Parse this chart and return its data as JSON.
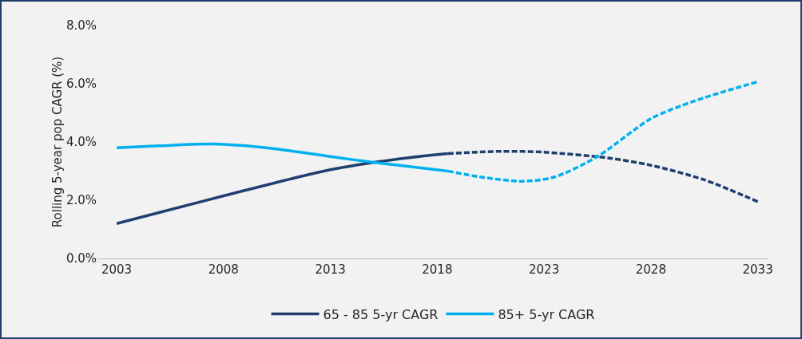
{
  "chart_data": {
    "type": "line",
    "ylabel": "Rolling 5-year pop CAGR (%)",
    "xlim": [
      2002.1,
      2033.5
    ],
    "ylim": [
      0,
      8
    ],
    "xticks": [
      2003,
      2008,
      2013,
      2018,
      2023,
      2028,
      2033
    ],
    "yticks": [
      {
        "value": 0,
        "label": "0.0%"
      },
      {
        "value": 2,
        "label": "2.0%"
      },
      {
        "value": 4,
        "label": "4.0%"
      },
      {
        "value": 6,
        "label": "6.0%"
      },
      {
        "value": 8,
        "label": "8.0%"
      }
    ],
    "legend": "bottom",
    "series": [
      {
        "name": "65 - 85 5-yr CAGR",
        "color": "#203f6e",
        "line_style": "solid",
        "x": [
          2003,
          2008,
          2013,
          2016,
          2018.5
        ],
        "values": [
          1.2,
          2.15,
          3.05,
          3.4,
          3.6
        ]
      },
      {
        "color": "#203f6e",
        "line_style": "dashed",
        "x": [
          2018.5,
          2021,
          2023,
          2026,
          2028,
          2030.5,
          2033
        ],
        "values": [
          3.6,
          3.68,
          3.65,
          3.45,
          3.2,
          2.7,
          1.95
        ]
      },
      {
        "name": "85+ 5-yr CAGR",
        "color": "#00b0f0",
        "line_style": "solid",
        "x": [
          2003,
          2005,
          2007.5,
          2010,
          2013,
          2015,
          2018.5
        ],
        "values": [
          3.8,
          3.87,
          3.93,
          3.8,
          3.5,
          3.3,
          3.0
        ]
      },
      {
        "color": "#00b0f0",
        "line_style": "dashed",
        "x": [
          2018.5,
          2020,
          2022,
          2023.5,
          2025.5,
          2028,
          2030,
          2033
        ],
        "values": [
          3.0,
          2.8,
          2.65,
          2.8,
          3.5,
          4.8,
          5.4,
          6.07
        ]
      }
    ]
  }
}
